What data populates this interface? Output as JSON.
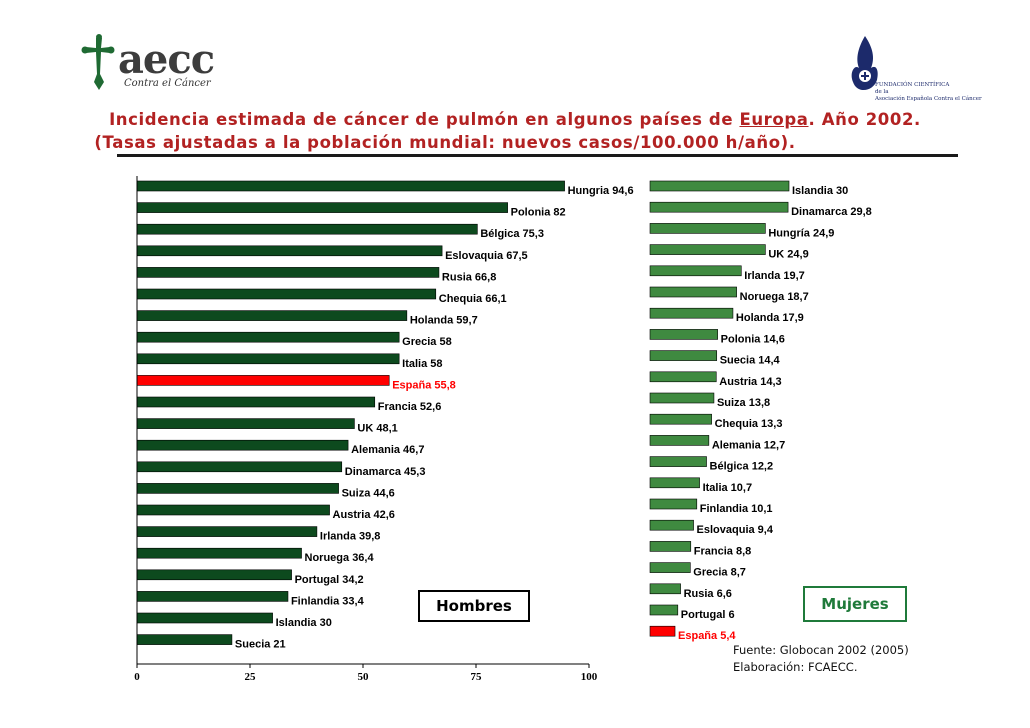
{
  "header": {
    "logo_name": "aecc",
    "logo_subtitle": "Contra el Cáncer",
    "foundation_line1": "FUNDACIÓN CIENTÍFICA",
    "foundation_line2": "de la",
    "foundation_line3": "Asociación Española Contra el Cáncer",
    "title_part1": "Incidencia estimada de cáncer de pulmón en algunos países de ",
    "title_link": "Europa",
    "title_part2": ". Año 2002.",
    "subtitle": "(Tasas ajustadas a la población mundial: nuevos casos/100.000 h/año)."
  },
  "colors": {
    "men_bar": "#0d4a1e",
    "women_bar": "#3f8a40",
    "highlight": "#ff0000",
    "title": "#b22222"
  },
  "chart_data": [
    {
      "type": "bar",
      "orientation": "horizontal",
      "legend": "Hombres",
      "xlim": [
        0,
        100
      ],
      "ticks": [
        "0",
        "25",
        "50",
        "75",
        "100"
      ],
      "highlight": "España",
      "categories": [
        "Hungría",
        "Polonia",
        "Bélgica",
        "Eslovaquia",
        "Rusia",
        "Chequia",
        "Holanda",
        "Grecia",
        "Italia",
        "España",
        "Francia",
        "UK",
        "Alemania",
        "Dinamarca",
        "Suiza",
        "Austria",
        "Irlanda",
        "Noruega",
        "Portugal",
        "Finlandia",
        "Islandia",
        "Suecia"
      ],
      "labels": [
        "Hungria 94,6",
        "Polonia 82",
        "Bélgica 75,3",
        "Eslovaquia 67,5",
        "Rusia 66,8",
        "Chequia 66,1",
        "Holanda 59,7",
        "Grecia 58",
        "Italia 58",
        "España 55,8",
        "Francia 52,6",
        "UK 48,1",
        "Alemania 46,7",
        "Dinamarca 45,3",
        "Suiza 44,6",
        "Austria 42,6",
        "Irlanda 39,8",
        "Noruega 36,4",
        "Portugal 34,2",
        "Finlandia 33,4",
        "Islandia 30",
        "Suecia 21"
      ],
      "values": [
        94.6,
        82,
        75.3,
        67.5,
        66.8,
        66.1,
        59.7,
        58,
        58,
        55.8,
        52.6,
        48.1,
        46.7,
        45.3,
        44.6,
        42.6,
        39.8,
        36.4,
        34.2,
        33.4,
        30,
        21
      ]
    },
    {
      "type": "bar",
      "orientation": "horizontal",
      "legend": "Mujeres",
      "highlight": "España",
      "categories": [
        "Islandia",
        "Dinamarca",
        "Hungría",
        "UK",
        "Irlanda",
        "Noruega",
        "Holanda",
        "Polonia",
        "Suecia",
        "Austria",
        "Suiza",
        "Chequia",
        "Alemania",
        "Bélgica",
        "Italia",
        "Finlandia",
        "Eslovaquia",
        "Francia",
        "Grecia",
        "Rusia",
        "Portugal",
        "España"
      ],
      "labels": [
        "Islandia 30",
        "Dinamarca 29,8",
        "Hungría 24,9",
        "UK 24,9",
        "Irlanda 19,7",
        "Noruega 18,7",
        "Holanda 17,9",
        "Polonia 14,6",
        "Suecia 14,4",
        "Austria 14,3",
        "Suiza 13,8",
        "Chequia 13,3",
        "Alemania 12,7",
        "Bélgica 12,2",
        "Italia 10,7",
        "Finlandia 10,1",
        "Eslovaquia 9,4",
        "Francia 8,8",
        "Grecia 8,7",
        "Rusia 6,6",
        "Portugal 6",
        "España 5,4"
      ],
      "values": [
        30,
        29.8,
        24.9,
        24.9,
        19.7,
        18.7,
        17.9,
        14.6,
        14.4,
        14.3,
        13.8,
        13.3,
        12.7,
        12.2,
        10.7,
        10.1,
        9.4,
        8.8,
        8.7,
        6.6,
        6,
        5.4
      ]
    }
  ],
  "source": {
    "line1": "Fuente: Globocan 2002 (2005)",
    "line2": "Elaboración: FCAECC."
  }
}
